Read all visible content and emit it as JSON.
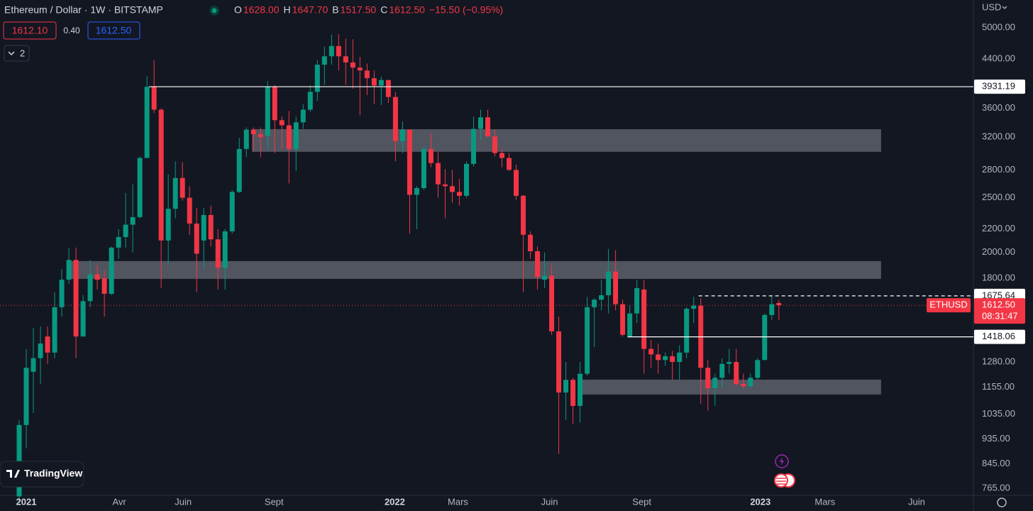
{
  "header": {
    "title": "Ethereum / Dollar · 1W · BITSTAMP",
    "ohlc": [
      {
        "key": "O",
        "value": "1628.00"
      },
      {
        "key": "H",
        "value": "1647.70"
      },
      {
        "key": "B",
        "value": "1517.50"
      },
      {
        "key": "C",
        "value": "1612.50"
      }
    ],
    "change": "−15.50 (−0.95%)"
  },
  "toolbar": {
    "bid": "1612.10",
    "spread": "0.40",
    "ask": "1612.50",
    "indicators": "2",
    "currency": "USD"
  },
  "logo": "TradingView",
  "chart_data": {
    "type": "candlestick",
    "log_scale": true,
    "grid": false,
    "up_color": "#089981",
    "down_color": "#f23645",
    "ylim": [
      743,
      5598
    ],
    "yticks": [
      {
        "value": 5000,
        "label": "5000.00"
      },
      {
        "value": 4400,
        "label": "4400.00"
      },
      {
        "value": 3600,
        "label": "3600.00"
      },
      {
        "value": 3200,
        "label": "3200.00"
      },
      {
        "value": 2800,
        "label": "2800.00"
      },
      {
        "value": 2500,
        "label": "2500.00"
      },
      {
        "value": 2200,
        "label": "2200.00"
      },
      {
        "value": 2000,
        "label": "2000.00"
      },
      {
        "value": 1800,
        "label": "1800.00"
      },
      {
        "value": 1280,
        "label": "1280.00"
      },
      {
        "value": 1155,
        "label": "1155.00"
      },
      {
        "value": 1035,
        "label": "1035.00"
      },
      {
        "value": 935,
        "label": "935.00"
      },
      {
        "value": 845,
        "label": "845.00"
      },
      {
        "value": 765,
        "label": "765.00"
      }
    ],
    "xlim": [
      -2.7,
      134.4
    ],
    "xticks": [
      {
        "value": 1.0,
        "label": "2021"
      },
      {
        "value": 14.1,
        "label": "Avr"
      },
      {
        "value": 23.1,
        "label": "Juin"
      },
      {
        "value": 35.9,
        "label": "Sept"
      },
      {
        "value": 52.9,
        "label": "2022"
      },
      {
        "value": 61.8,
        "label": "Mars"
      },
      {
        "value": 74.7,
        "label": "Juin"
      },
      {
        "value": 87.7,
        "label": "Sept"
      },
      {
        "value": 104.4,
        "label": "2023"
      },
      {
        "value": 113.5,
        "label": "Mars"
      },
      {
        "value": 126.4,
        "label": "Juin"
      }
    ],
    "open": [
      740,
      990,
      1230,
      1300,
      1420,
      1330,
      1600,
      1790,
      1940,
      1420,
      1640,
      1830,
      1800,
      1690,
      2040,
      2130,
      2240,
      2310,
      2940,
      3930,
      3580,
      2100,
      2390,
      2710,
      2500,
      2250,
      2100,
      2330,
      2110,
      1880,
      2180,
      2560,
      3050,
      3300,
      3240,
      3220,
      3930,
      3430,
      3360,
      3050,
      3400,
      3580,
      3850,
      4300,
      4450,
      4640,
      4450,
      4340,
      4250,
      4200,
      4070,
      3950,
      4040,
      3770,
      3150,
      3300,
      2530,
      2600,
      3050,
      2880,
      2640,
      2620,
      2560,
      2520,
      2870,
      3310,
      3470,
      3210,
      3000,
      2940,
      2800,
      2520,
      2150,
      2010,
      1790,
      1820,
      1450,
      1130,
      1190,
      1070,
      1220,
      1600,
      1650,
      1680,
      1850,
      1620,
      1420,
      1560,
      1720,
      1350,
      1320,
      1290,
      1310,
      1280,
      1330,
      1590,
      1610,
      1250,
      1150,
      1200,
      1270,
      1280,
      1170,
      1160,
      1200,
      1290,
      1550,
      1628
    ],
    "high": [
      1010,
      1350,
      1470,
      1480,
      1480,
      1700,
      1870,
      2040,
      2040,
      1680,
      1940,
      1900,
      1860,
      2050,
      2200,
      2550,
      2640,
      2960,
      4100,
      4380,
      3600,
      2750,
      2900,
      2890,
      2620,
      2400,
      2400,
      2420,
      2200,
      2200,
      2580,
      3190,
      3330,
      3330,
      3330,
      4020,
      3960,
      3480,
      3560,
      3480,
      3660,
      3950,
      4380,
      4630,
      4860,
      4870,
      4780,
      4770,
      4440,
      4320,
      4200,
      4100,
      4040,
      3850,
      3410,
      3300,
      2620,
      3080,
      3250,
      3010,
      2810,
      2800,
      2700,
      2900,
      3480,
      3580,
      3580,
      3300,
      3050,
      3000,
      2860,
      2530,
      2180,
      2050,
      2000,
      1900,
      1540,
      1280,
      1200,
      1280,
      1670,
      1660,
      1790,
      2030,
      2020,
      1650,
      1610,
      1790,
      1790,
      1400,
      1380,
      1330,
      1340,
      1370,
      1600,
      1670,
      1660,
      1290,
      1220,
      1300,
      1350,
      1350,
      1220,
      1220,
      1300,
      1560,
      1680,
      1647.7
    ],
    "low": [
      720,
      900,
      1040,
      1170,
      1270,
      1300,
      1540,
      1760,
      1300,
      1420,
      1600,
      1720,
      1540,
      1680,
      1950,
      2040,
      2000,
      2300,
      2940,
      3530,
      1730,
      1900,
      2300,
      2470,
      2150,
      1700,
      1870,
      2050,
      1720,
      1720,
      2160,
      2550,
      2950,
      3020,
      2950,
      3060,
      3000,
      3060,
      2650,
      2790,
      3310,
      3550,
      3710,
      3960,
      4300,
      4200,
      3960,
      3900,
      3500,
      3800,
      3660,
      3650,
      3680,
      2900,
      3000,
      2160,
      2200,
      2580,
      2830,
      2500,
      2300,
      2450,
      2420,
      2500,
      2840,
      3170,
      3200,
      2960,
      2830,
      2790,
      2480,
      1700,
      1950,
      1720,
      1730,
      1430,
      880,
      1010,
      995,
      1000,
      1210,
      1360,
      1580,
      1560,
      1580,
      1420,
      1420,
      1500,
      1220,
      1250,
      1220,
      1260,
      1190,
      1190,
      1300,
      1500,
      1080,
      1050,
      1070,
      1150,
      1220,
      1160,
      1150,
      1150,
      1190,
      1290,
      1520,
      1517.5
    ],
    "close": [
      990,
      1250,
      1300,
      1380,
      1330,
      1600,
      1790,
      1940,
      1420,
      1640,
      1830,
      1790,
      1690,
      2040,
      2130,
      2240,
      2310,
      2940,
      3930,
      3580,
      2100,
      2390,
      2710,
      2500,
      2250,
      1990,
      2330,
      2110,
      1880,
      2180,
      2560,
      3050,
      3300,
      3240,
      3200,
      3930,
      3430,
      3360,
      3050,
      3400,
      3580,
      3850,
      4300,
      4450,
      4640,
      4450,
      4340,
      4250,
      4200,
      4070,
      3950,
      4040,
      3770,
      3150,
      3300,
      2530,
      2600,
      3050,
      2880,
      2640,
      2620,
      2560,
      2520,
      2870,
      3310,
      3470,
      3210,
      3000,
      2940,
      2800,
      2520,
      2150,
      2010,
      1810,
      1820,
      1450,
      1130,
      1190,
      1070,
      1220,
      1600,
      1650,
      1680,
      1850,
      1620,
      1430,
      1560,
      1730,
      1350,
      1320,
      1290,
      1310,
      1280,
      1330,
      1590,
      1610,
      1250,
      1150,
      1200,
      1270,
      1280,
      1170,
      1160,
      1200,
      1290,
      1550,
      1620,
      1612.5
    ],
    "zones": [
      {
        "low": 3015,
        "high": 3306,
        "x_start": 32.8,
        "x_end": 121.4,
        "color": "#5d606b"
      },
      {
        "low": 1796,
        "high": 1931,
        "x_start": 7.3,
        "x_end": 121.4,
        "color": "#5d606b"
      },
      {
        "low": 1121,
        "high": 1191,
        "x_start": 79.1,
        "x_end": 121.4,
        "color": "#5d606b"
      }
    ],
    "price_lines": [
      {
        "value": 3931.19,
        "label": "3931.19",
        "x_start": 18.3,
        "dashed": false
      },
      {
        "value": 1675.64,
        "label": "1675.64",
        "x_start": 95.7,
        "dashed": true
      },
      {
        "value": 1418.06,
        "label": "1418.06",
        "x_start": 85.7,
        "dashed": false
      }
    ],
    "current_price": {
      "value": 1612.5,
      "label": "1612.50",
      "symbol": "ETHUSD",
      "countdown": "08:31:47",
      "color": "#f23645"
    }
  }
}
